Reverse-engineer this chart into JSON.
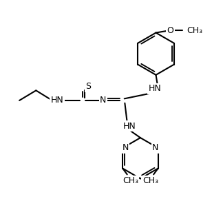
{
  "bg_color": "#ffffff",
  "line_color": "#000000",
  "line_width": 1.5,
  "font_size": 9,
  "figsize": [
    3.24,
    3.08
  ],
  "dpi": 100,
  "xlim": [
    0,
    10
  ],
  "ylim": [
    0,
    9.5
  ]
}
